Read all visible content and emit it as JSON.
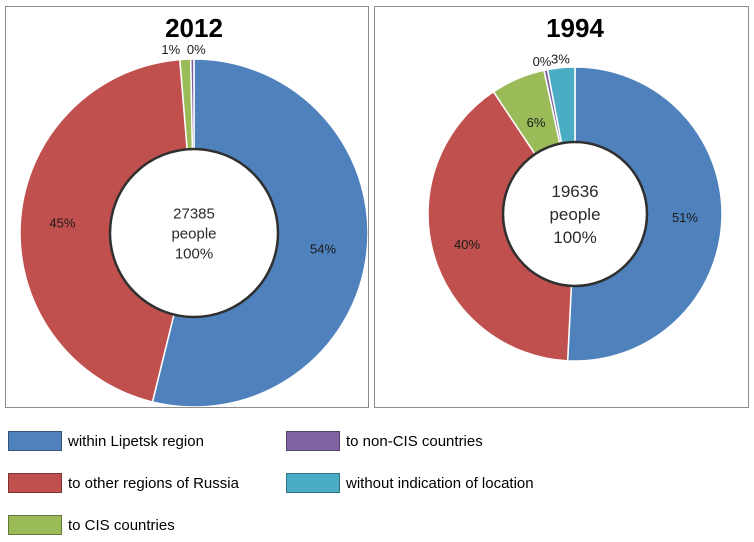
{
  "colors": {
    "within": "#4F81BD",
    "russia": "#C0504D",
    "cis": "#9BBB59",
    "noncis": "#8064A2",
    "noloc": "#4BACC6"
  },
  "legend": [
    {
      "key": "within",
      "label": "within Lipetsk region"
    },
    {
      "key": "russia",
      "label": "to other regions of Russia"
    },
    {
      "key": "cis",
      "label": "to CIS countries"
    },
    {
      "key": "noncis",
      "label": "to non-CIS countries"
    },
    {
      "key": "noloc",
      "label": "without indication of location"
    }
  ],
  "chart_data": [
    {
      "type": "pie",
      "title": "2012",
      "center_lines": [
        "27385",
        "people",
        "100%"
      ],
      "slices": [
        {
          "key": "within",
          "value": 54,
          "label": "54%"
        },
        {
          "key": "russia",
          "value": 45,
          "label": "45%"
        },
        {
          "key": "cis",
          "value": 1,
          "label": "1%"
        },
        {
          "key": "noncis",
          "value": 0.3,
          "label": "0%"
        }
      ]
    },
    {
      "type": "pie",
      "title": "1994",
      "center_lines": [
        "19636",
        "people",
        "100%"
      ],
      "slices": [
        {
          "key": "within",
          "value": 51,
          "label": "51%"
        },
        {
          "key": "russia",
          "value": 40,
          "label": "40%"
        },
        {
          "key": "cis",
          "value": 6,
          "label": "6%"
        },
        {
          "key": "noncis",
          "value": 0.4,
          "label": "0%"
        },
        {
          "key": "noloc",
          "value": 3,
          "label": "3%"
        }
      ]
    }
  ]
}
